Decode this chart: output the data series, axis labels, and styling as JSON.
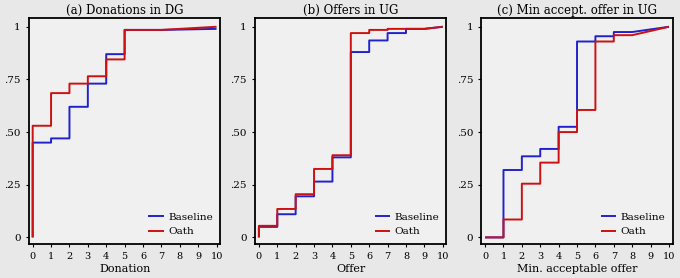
{
  "title_a": "(a) Donations in DG",
  "title_b": "(b) Offers in UG",
  "title_c": "(c) Min accept. offer in UG",
  "xlabel_a": "Donation",
  "xlabel_b": "Offer",
  "xlabel_c": "Min. acceptable offer",
  "legend_labels": [
    "Baseline",
    "Oath"
  ],
  "blue_color": "#2222cc",
  "red_color": "#cc1111",
  "linewidth": 1.4,
  "dg_baseline_x": [
    -0.0,
    0,
    0,
    1,
    1,
    2,
    2,
    3,
    3,
    4,
    4,
    5,
    5,
    7,
    10
  ],
  "dg_baseline_y": [
    0.0,
    0,
    0.45,
    0.45,
    0.47,
    0.47,
    0.62,
    0.62,
    0.73,
    0.73,
    0.87,
    0.87,
    0.985,
    0.985,
    0.99
  ],
  "dg_oath_x": [
    -0.0,
    0,
    0,
    1,
    1,
    2,
    2,
    3,
    3,
    4,
    4,
    5,
    5,
    7,
    10
  ],
  "dg_oath_y": [
    0.0,
    0,
    0.53,
    0.53,
    0.685,
    0.685,
    0.73,
    0.73,
    0.765,
    0.765,
    0.845,
    0.845,
    0.985,
    0.985,
    1.0
  ],
  "ug_baseline_x": [
    -0.0,
    0,
    0,
    1,
    1,
    2,
    2,
    3,
    3,
    4,
    4,
    5,
    5,
    6,
    6,
    7,
    7,
    8,
    8,
    9,
    10
  ],
  "ug_baseline_y": [
    0.0,
    0,
    0.05,
    0.05,
    0.11,
    0.11,
    0.195,
    0.195,
    0.265,
    0.265,
    0.38,
    0.38,
    0.88,
    0.88,
    0.935,
    0.935,
    0.97,
    0.97,
    0.99,
    0.99,
    1.0
  ],
  "ug_oath_x": [
    -0.0,
    0,
    0,
    1,
    1,
    2,
    2,
    3,
    3,
    4,
    4,
    5,
    5,
    6,
    6,
    7,
    7,
    9,
    10
  ],
  "ug_oath_y": [
    0.0,
    0,
    0.055,
    0.055,
    0.135,
    0.135,
    0.205,
    0.205,
    0.325,
    0.325,
    0.39,
    0.39,
    0.97,
    0.97,
    0.985,
    0.985,
    0.99,
    0.99,
    1.0
  ],
  "mao_baseline_x": [
    -0.0,
    0,
    1,
    1,
    2,
    2,
    3,
    3,
    4,
    4,
    5,
    5,
    6,
    6,
    7,
    7,
    8,
    10
  ],
  "mao_baseline_y": [
    0.0,
    0.0,
    0.0,
    0.32,
    0.32,
    0.385,
    0.385,
    0.42,
    0.42,
    0.525,
    0.525,
    0.93,
    0.93,
    0.955,
    0.955,
    0.975,
    0.975,
    1.0
  ],
  "mao_oath_x": [
    -0.0,
    0,
    1,
    1,
    2,
    2,
    3,
    3,
    4,
    4,
    5,
    5,
    6,
    6,
    7,
    7,
    8,
    10
  ],
  "mao_oath_y": [
    0.0,
    0.0,
    0.0,
    0.085,
    0.085,
    0.255,
    0.255,
    0.355,
    0.355,
    0.5,
    0.5,
    0.605,
    0.605,
    0.93,
    0.93,
    0.96,
    0.96,
    1.0
  ],
  "yticks": [
    0,
    0.25,
    0.5,
    0.75,
    1.0
  ],
  "ytick_labels": [
    "0",
    ".25",
    ".50",
    ".75",
    "1"
  ],
  "xticks": [
    0,
    1,
    2,
    3,
    4,
    5,
    6,
    7,
    8,
    9,
    10
  ],
  "xlim": [
    -0.2,
    10.2
  ],
  "ylim": [
    -0.03,
    1.04
  ],
  "bg_color": "#f0f0f0",
  "fig_bg_color": "#e8e8e8"
}
